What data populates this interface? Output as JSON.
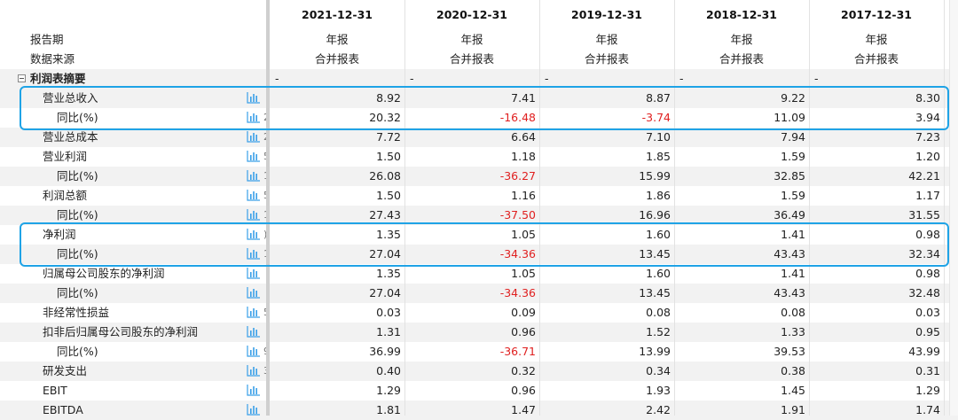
{
  "columns": [
    "2021-12-31",
    "2020-12-31",
    "2019-12-31",
    "2018-12-31",
    "2017-12-31"
  ],
  "report_period": {
    "label": "报告期",
    "values": [
      "年报",
      "年报",
      "年报",
      "年报",
      "年报"
    ]
  },
  "data_source": {
    "label": "数据来源",
    "values": [
      "合并报表",
      "合并报表",
      "合并报表",
      "合并报表",
      "合并报表"
    ]
  },
  "section": {
    "label": "利润表摘要",
    "values": [
      "-",
      "-",
      "-",
      "-",
      "-"
    ]
  },
  "rows": [
    {
      "label": "营业总收入",
      "indent": 2,
      "cut": "",
      "values": [
        "8.92",
        "7.41",
        "8.87",
        "9.22",
        "8.30"
      ],
      "neg": [
        false,
        false,
        false,
        false,
        false
      ]
    },
    {
      "label": "同比(%)",
      "indent": 3,
      "cut": "2",
      "values": [
        "20.32",
        "-16.48",
        "-3.74",
        "11.09",
        "3.94"
      ],
      "neg": [
        false,
        true,
        true,
        false,
        false
      ]
    },
    {
      "label": "营业总成本",
      "indent": 2,
      "cut": "2",
      "values": [
        "7.72",
        "6.64",
        "7.10",
        "7.94",
        "7.23"
      ],
      "neg": [
        false,
        false,
        false,
        false,
        false
      ]
    },
    {
      "label": "营业利润",
      "indent": 2,
      "cut": "5",
      "values": [
        "1.50",
        "1.18",
        "1.85",
        "1.59",
        "1.20"
      ],
      "neg": [
        false,
        false,
        false,
        false,
        false
      ]
    },
    {
      "label": "同比(%)",
      "indent": 3,
      "cut": "1",
      "values": [
        "26.08",
        "-36.27",
        "15.99",
        "32.85",
        "42.21"
      ],
      "neg": [
        false,
        true,
        false,
        false,
        false
      ]
    },
    {
      "label": "利润总额",
      "indent": 2,
      "cut": "5",
      "values": [
        "1.50",
        "1.16",
        "1.86",
        "1.59",
        "1.17"
      ],
      "neg": [
        false,
        false,
        false,
        false,
        false
      ]
    },
    {
      "label": "同比(%)",
      "indent": 3,
      "cut": "1",
      "values": [
        "27.43",
        "-37.50",
        "16.96",
        "36.49",
        "31.55"
      ],
      "neg": [
        false,
        true,
        false,
        false,
        false
      ]
    },
    {
      "label": "净利润",
      "indent": 2,
      "cut": ")",
      "values": [
        "1.35",
        "1.05",
        "1.60",
        "1.41",
        "0.98"
      ],
      "neg": [
        false,
        false,
        false,
        false,
        false
      ]
    },
    {
      "label": "同比(%)",
      "indent": 3,
      "cut": "1",
      "values": [
        "27.04",
        "-34.36",
        "13.45",
        "43.43",
        "32.34"
      ],
      "neg": [
        false,
        true,
        false,
        false,
        false
      ]
    },
    {
      "label": "归属母公司股东的净利润",
      "indent": 2,
      "cut": "",
      "values": [
        "1.35",
        "1.05",
        "1.60",
        "1.41",
        "0.98"
      ],
      "neg": [
        false,
        false,
        false,
        false,
        false
      ]
    },
    {
      "label": "同比(%)",
      "indent": 3,
      "cut": "",
      "values": [
        "27.04",
        "-34.36",
        "13.45",
        "43.43",
        "32.48"
      ],
      "neg": [
        false,
        true,
        false,
        false,
        false
      ]
    },
    {
      "label": "非经常性损益",
      "indent": 2,
      "cut": "5",
      "values": [
        "0.03",
        "0.09",
        "0.08",
        "0.08",
        "0.03"
      ],
      "neg": [
        false,
        false,
        false,
        false,
        false
      ]
    },
    {
      "label": "扣非后归属母公司股东的净利润",
      "indent": 2,
      "cut": "",
      "values": [
        "1.31",
        "0.96",
        "1.52",
        "1.33",
        "0.95"
      ],
      "neg": [
        false,
        false,
        false,
        false,
        false
      ]
    },
    {
      "label": "同比(%)",
      "indent": 3,
      "cut": "9",
      "values": [
        "36.99",
        "-36.71",
        "13.99",
        "39.53",
        "43.99"
      ],
      "neg": [
        false,
        true,
        false,
        false,
        false
      ]
    },
    {
      "label": "研发支出",
      "indent": 2,
      "cut": "3",
      "values": [
        "0.40",
        "0.32",
        "0.34",
        "0.38",
        "0.31"
      ],
      "neg": [
        false,
        false,
        false,
        false,
        false
      ]
    },
    {
      "label": "EBIT",
      "indent": 2,
      "cut": "",
      "values": [
        "1.29",
        "0.96",
        "1.93",
        "1.45",
        "1.29"
      ],
      "neg": [
        false,
        false,
        false,
        false,
        false
      ]
    },
    {
      "label": "EBITDA",
      "indent": 2,
      "cut": "",
      "values": [
        "1.81",
        "1.47",
        "2.42",
        "1.91",
        "1.74"
      ],
      "neg": [
        false,
        false,
        false,
        false,
        false
      ]
    }
  ],
  "icons": {
    "row_chart": "bar-chart-icon",
    "section_toggle": "collapse-toggle-icon"
  },
  "colors": {
    "negative": "#e02020",
    "highlight": "#1fa3e6",
    "chart_icon": "#3aa0e8"
  }
}
